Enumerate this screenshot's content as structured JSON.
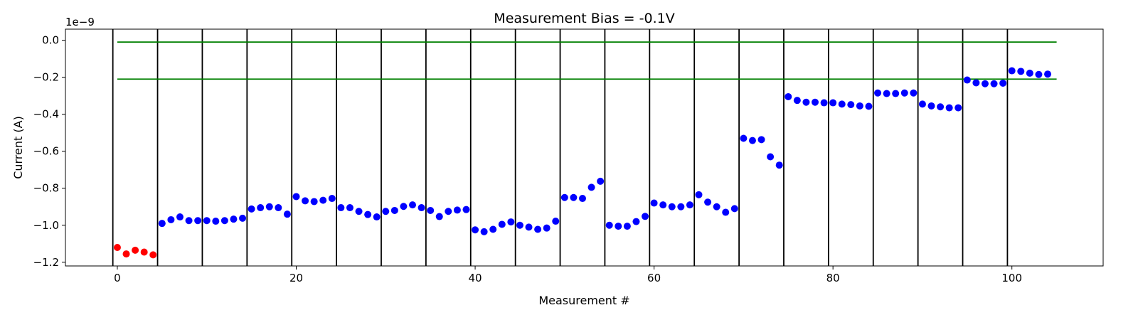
{
  "chart_data": {
    "type": "scatter",
    "title": "Measurement Bias = -0.1V",
    "xlabel": "Measurement #",
    "ylabel": "Current (A)",
    "y_offset_label": "1e−9",
    "xlim": [
      -5.8,
      110.2
    ],
    "ylim": [
      -1.22,
      0.06
    ],
    "x_ticks": [
      0,
      20,
      40,
      60,
      80,
      100
    ],
    "x_tick_labels": [
      "0",
      "20",
      "40",
      "60",
      "80",
      "100"
    ],
    "y_ticks": [
      0.0,
      -0.2,
      -0.4,
      -0.6,
      -0.8,
      -1.0,
      -1.2
    ],
    "y_tick_labels": [
      "0.0",
      "−0.2",
      "−0.4",
      "−0.6",
      "−0.8",
      "−1.0",
      "−1.2"
    ],
    "grid": false,
    "colors": {
      "first_group": "#ff0000",
      "other_groups": "#0000ff",
      "reference_lines": "#008000",
      "separators": "#000000"
    },
    "reference_lines": [
      {
        "y": -0.01,
        "x_range": [
          0,
          105
        ]
      },
      {
        "y": -0.21,
        "x_range": [
          0,
          105
        ]
      }
    ],
    "group_separators": [
      -0.5,
      4.5,
      9.5,
      14.5,
      19.5,
      24.5,
      29.5,
      34.5,
      39.5,
      44.5,
      49.5,
      54.5,
      59.5,
      64.5,
      69.5,
      74.5,
      79.5,
      84.5,
      89.5,
      94.5,
      99.5
    ],
    "series": [
      {
        "color": "#ff0000",
        "x": [
          0,
          1,
          2,
          3,
          4
        ],
        "values": [
          -1.12,
          -1.155,
          -1.135,
          -1.145,
          -1.16
        ]
      },
      {
        "color": "#0000ff",
        "x": [
          5,
          6,
          7,
          8,
          9,
          10,
          11,
          12,
          13,
          14,
          15,
          16,
          17,
          18,
          19,
          20,
          21,
          22,
          23,
          24,
          25,
          26,
          27,
          28,
          29,
          30,
          31,
          32,
          33,
          34,
          35,
          36,
          37,
          38,
          39,
          40,
          41,
          42,
          43,
          44,
          45,
          46,
          47,
          48,
          49,
          50,
          51,
          52,
          53,
          54,
          55,
          56,
          57,
          58,
          59,
          60,
          61,
          62,
          63,
          64,
          65,
          66,
          67,
          68,
          69,
          70,
          71,
          72,
          73,
          74,
          75,
          76,
          77,
          78,
          79,
          80,
          81,
          82,
          83,
          84,
          85,
          86,
          87,
          88,
          89,
          90,
          91,
          92,
          93,
          94,
          95,
          96,
          97,
          98,
          99,
          100,
          101,
          102,
          103,
          104
        ],
        "values": [
          -0.99,
          -0.97,
          -0.955,
          -0.975,
          -0.975,
          -0.975,
          -0.978,
          -0.975,
          -0.967,
          -0.962,
          -0.912,
          -0.905,
          -0.9,
          -0.905,
          -0.94,
          -0.845,
          -0.868,
          -0.872,
          -0.865,
          -0.855,
          -0.905,
          -0.905,
          -0.925,
          -0.942,
          -0.955,
          -0.925,
          -0.92,
          -0.898,
          -0.89,
          -0.905,
          -0.92,
          -0.953,
          -0.925,
          -0.918,
          -0.915,
          -1.025,
          -1.035,
          -1.022,
          -0.995,
          -0.982,
          -1.0,
          -1.01,
          -1.022,
          -1.015,
          -0.978,
          -0.85,
          -0.85,
          -0.855,
          -0.795,
          -0.762,
          -1.0,
          -1.005,
          -1.005,
          -0.98,
          -0.952,
          -0.88,
          -0.89,
          -0.9,
          -0.9,
          -0.89,
          -0.835,
          -0.875,
          -0.9,
          -0.93,
          -0.91,
          -0.53,
          -0.542,
          -0.537,
          -0.63,
          -0.675,
          -0.305,
          -0.325,
          -0.335,
          -0.335,
          -0.338,
          -0.338,
          -0.345,
          -0.348,
          -0.355,
          -0.357,
          -0.285,
          -0.288,
          -0.288,
          -0.285,
          -0.285,
          -0.345,
          -0.355,
          -0.36,
          -0.365,
          -0.365,
          -0.215,
          -0.23,
          -0.235,
          -0.235,
          -0.232,
          -0.165,
          -0.168,
          -0.178,
          -0.185,
          -0.183
        ]
      }
    ]
  }
}
